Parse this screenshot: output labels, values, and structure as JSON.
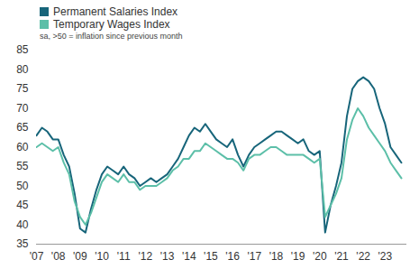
{
  "chart_data": {
    "type": "line",
    "subtitle": "sa, >50 = inflation since previous month",
    "legend": "top-left",
    "grid": false,
    "x": [
      2007,
      2007.25,
      2007.5,
      2007.75,
      2008,
      2008.25,
      2008.5,
      2008.75,
      2009,
      2009.25,
      2009.5,
      2009.75,
      2010,
      2010.25,
      2010.5,
      2010.75,
      2011,
      2011.25,
      2011.5,
      2011.75,
      2012,
      2012.25,
      2012.5,
      2012.75,
      2013,
      2013.25,
      2013.5,
      2013.75,
      2014,
      2014.25,
      2014.5,
      2014.75,
      2015,
      2015.25,
      2015.5,
      2015.75,
      2016,
      2016.25,
      2016.5,
      2016.75,
      2017,
      2017.25,
      2017.5,
      2017.75,
      2018,
      2018.25,
      2018.5,
      2018.75,
      2019,
      2019.25,
      2019.5,
      2019.75,
      2020,
      2020.25,
      2020.5,
      2020.75,
      2021,
      2021.25,
      2021.5,
      2021.75,
      2022,
      2022.25,
      2022.5,
      2022.75,
      2023,
      2023.25,
      2023.5,
      2023.75
    ],
    "series": [
      {
        "name": "Permanent Salaries Index",
        "color": "#17657a",
        "values": [
          63,
          65,
          64,
          62,
          62,
          58,
          55,
          48,
          39,
          38,
          44,
          49,
          53,
          55,
          54,
          53,
          55,
          53,
          52,
          50,
          51,
          52,
          51,
          52,
          53,
          55,
          57,
          60,
          63,
          65,
          64,
          66,
          64,
          62,
          61,
          60,
          62,
          58,
          55,
          58,
          60,
          61,
          62,
          63,
          64,
          64,
          63,
          62,
          61,
          62,
          59,
          58,
          59,
          38,
          45,
          50,
          56,
          68,
          75,
          77,
          78,
          77,
          75,
          70,
          66,
          60,
          58,
          56
        ]
      },
      {
        "name": "Temporary Wages Index",
        "color": "#5cbfa8",
        "values": [
          60,
          61,
          60,
          59,
          60,
          56,
          53,
          46,
          42,
          40,
          43,
          47,
          51,
          53,
          52,
          51,
          53,
          51,
          51,
          49,
          50,
          50,
          50,
          51,
          52,
          54,
          55,
          57,
          57,
          59,
          59,
          61,
          60,
          59,
          58,
          57,
          57,
          56,
          54,
          57,
          58,
          58,
          59,
          60,
          60,
          59,
          58,
          58,
          58,
          58,
          57,
          56,
          57,
          42,
          45,
          48,
          52,
          62,
          67,
          70,
          68,
          65,
          63,
          61,
          59,
          56,
          54,
          52
        ]
      }
    ],
    "xlim": [
      2007,
      2024
    ],
    "xticks": [
      {
        "value": 2007,
        "label": "'07"
      },
      {
        "value": 2008,
        "label": "'08"
      },
      {
        "value": 2009,
        "label": "'09"
      },
      {
        "value": 2010,
        "label": "'10"
      },
      {
        "value": 2011,
        "label": "'11"
      },
      {
        "value": 2012,
        "label": "'12"
      },
      {
        "value": 2013,
        "label": "'13"
      },
      {
        "value": 2014,
        "label": "'14"
      },
      {
        "value": 2015,
        "label": "'15"
      },
      {
        "value": 2016,
        "label": "'16"
      },
      {
        "value": 2017,
        "label": "'17"
      },
      {
        "value": 2018,
        "label": "'18"
      },
      {
        "value": 2019,
        "label": "'19"
      },
      {
        "value": 2020,
        "label": "'20"
      },
      {
        "value": 2021,
        "label": "'21"
      },
      {
        "value": 2022,
        "label": "'22"
      },
      {
        "value": 2023,
        "label": "'23"
      }
    ],
    "ylim": [
      35,
      85
    ],
    "yticks": [
      35,
      40,
      45,
      50,
      55,
      60,
      65,
      70,
      75,
      80,
      85
    ]
  }
}
